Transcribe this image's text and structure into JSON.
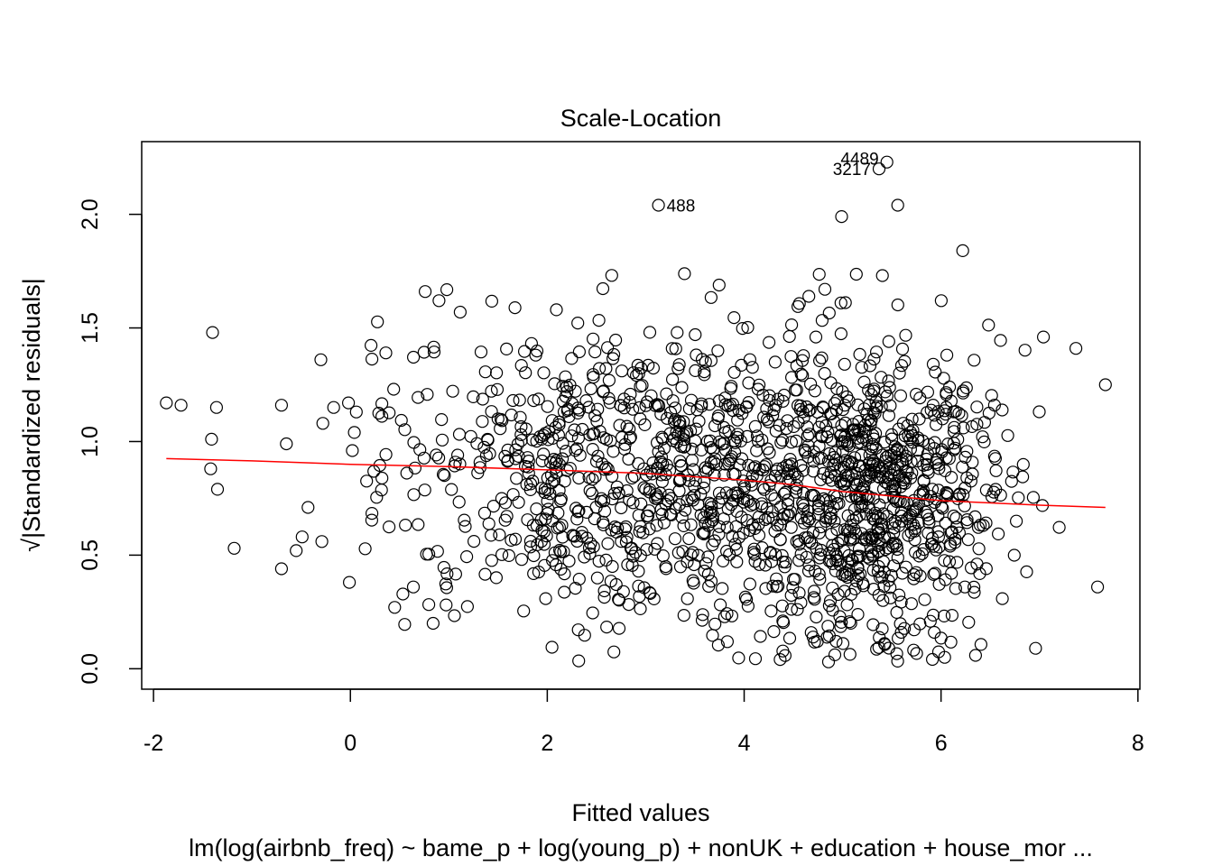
{
  "chart_data": {
    "type": "scatter",
    "title": "Scale-Location",
    "xlabel": "Fitted values",
    "ylabel": "√|Standardized residuals|",
    "caption": "lm(log(airbnb_freq) ~ bame_p + log(young_p) + nonUK + education + house_mor ...",
    "xlim": [
      -2.12,
      8.02
    ],
    "ylim": [
      -0.09,
      2.32
    ],
    "xticks": [
      -2,
      0,
      2,
      4,
      6,
      8
    ],
    "yticks": [
      0.0,
      0.5,
      1.0,
      1.5,
      2.0
    ],
    "xtick_labels": [
      "-2",
      "0",
      "2",
      "4",
      "6",
      "8"
    ],
    "ytick_labels": [
      "0.0",
      "0.5",
      "1.0",
      "1.5",
      "2.0"
    ],
    "grid": false,
    "point_count": 1600,
    "smooth_line": {
      "color": "#ff0000",
      "x": [
        -1.87,
        -1,
        0,
        1,
        2,
        3,
        4,
        4.5,
        5,
        5.5,
        6,
        6.5,
        7,
        7.67
      ],
      "y": [
        0.925,
        0.915,
        0.9,
        0.89,
        0.875,
        0.86,
        0.83,
        0.81,
        0.78,
        0.76,
        0.74,
        0.73,
        0.72,
        0.71
      ]
    },
    "labeled_points": [
      {
        "label": "4489",
        "x": 5.45,
        "y": 2.23
      },
      {
        "label": "3217",
        "x": 5.37,
        "y": 2.2
      },
      {
        "label": "488",
        "x": 3.13,
        "y": 2.04
      }
    ],
    "outlier_points": [
      {
        "x": -1.87,
        "y": 1.17
      },
      {
        "x": -1.72,
        "y": 1.16
      },
      {
        "x": -1.4,
        "y": 1.48
      },
      {
        "x": -1.36,
        "y": 1.15
      },
      {
        "x": -1.41,
        "y": 1.01
      },
      {
        "x": -1.42,
        "y": 0.88
      },
      {
        "x": -1.35,
        "y": 0.79
      },
      {
        "x": -1.18,
        "y": 0.53
      },
      {
        "x": -0.7,
        "y": 1.16
      },
      {
        "x": -0.65,
        "y": 0.99
      },
      {
        "x": -0.7,
        "y": 0.44
      },
      {
        "x": -0.55,
        "y": 0.52
      },
      {
        "x": -0.49,
        "y": 0.58
      },
      {
        "x": -0.43,
        "y": 0.71
      },
      {
        "x": -0.3,
        "y": 1.36
      },
      {
        "x": -0.28,
        "y": 1.08
      },
      {
        "x": -0.29,
        "y": 0.56
      },
      {
        "x": -0.17,
        "y": 1.15
      },
      {
        "x": -0.02,
        "y": 1.17
      },
      {
        "x": 0.02,
        "y": 0.96
      },
      {
        "x": 0.04,
        "y": 1.04
      },
      {
        "x": -0.01,
        "y": 0.38
      },
      {
        "x": 0.06,
        "y": 1.13
      },
      {
        "x": 0.36,
        "y": 1.39
      },
      {
        "x": 0.44,
        "y": 1.23
      },
      {
        "x": 0.45,
        "y": 0.27
      },
      {
        "x": 0.64,
        "y": 0.36
      },
      {
        "x": 0.76,
        "y": 1.66
      },
      {
        "x": 0.9,
        "y": 1.62
      },
      {
        "x": 0.84,
        "y": 0.2
      },
      {
        "x": 7.37,
        "y": 1.41
      },
      {
        "x": 7.67,
        "y": 1.25
      },
      {
        "x": 7.59,
        "y": 0.36
      },
      {
        "x": 7.04,
        "y": 1.46
      },
      {
        "x": 6.96,
        "y": 0.09
      },
      {
        "x": 4.99,
        "y": 1.99
      },
      {
        "x": 5.56,
        "y": 2.04
      },
      {
        "x": 6.22,
        "y": 1.84
      },
      {
        "x": 4.82,
        "y": 1.67
      }
    ]
  }
}
